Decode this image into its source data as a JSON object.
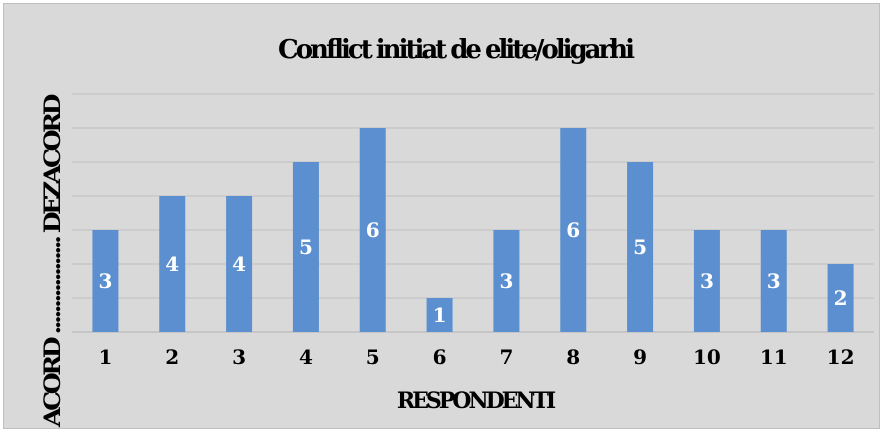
{
  "colors": {
    "background": "#d9d9d9",
    "bar": "#5b8fd0",
    "gridline": "#bfbfbf",
    "data_label": "#ffffff",
    "text": "#000000"
  },
  "chart_data": {
    "type": "bar",
    "title": "Conflict initiat de elite/oligarhi",
    "xlabel": "RESPONDENTI",
    "ylabel": "ACORD .................. DEZACORD",
    "categories": [
      "1",
      "2",
      "3",
      "4",
      "5",
      "6",
      "7",
      "8",
      "9",
      "10",
      "11",
      "12"
    ],
    "values": [
      3,
      4,
      4,
      5,
      6,
      1,
      3,
      6,
      5,
      3,
      3,
      2
    ],
    "ylim": [
      0,
      7
    ],
    "grid": true,
    "legend": "none",
    "data_labels": true
  }
}
